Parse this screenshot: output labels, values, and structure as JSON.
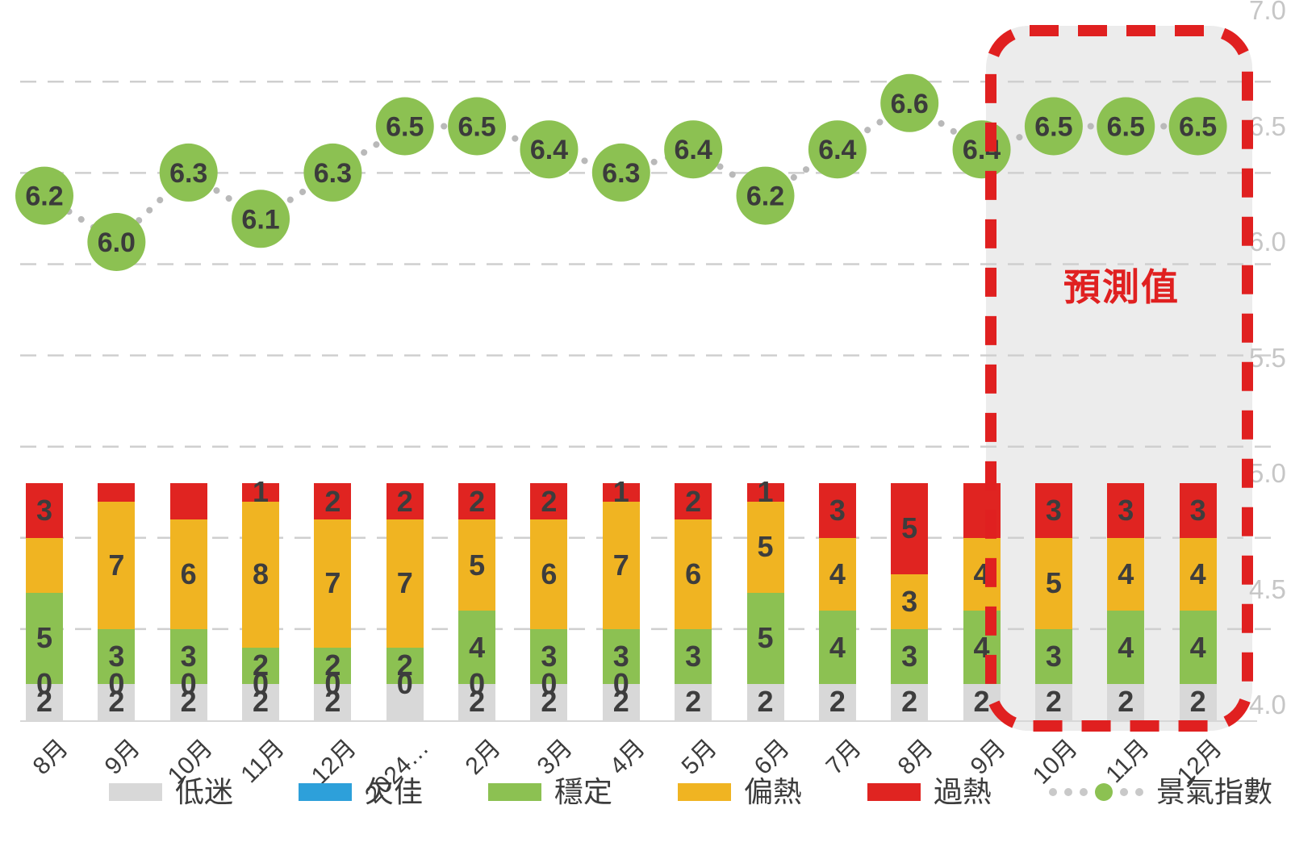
{
  "chart_data": {
    "type": "combo",
    "categories": [
      "8月",
      "9月",
      "10月",
      "11月",
      "12月",
      "2024…",
      "2月",
      "3月",
      "4月",
      "5月",
      "6月",
      "7月",
      "8月",
      "9月",
      "10月",
      "11月",
      "12月"
    ],
    "line_series": {
      "name": "景氣指數",
      "values": [
        6.2,
        6.0,
        6.3,
        6.1,
        6.3,
        6.5,
        6.5,
        6.4,
        6.3,
        6.4,
        6.2,
        6.4,
        6.6,
        6.4,
        6.5,
        6.5,
        6.5
      ],
      "marker_color": "#8cc152",
      "connector_color": "#b9b9b9"
    },
    "bar_series": [
      {
        "name": "低迷",
        "color": "#d8d8d8",
        "values": [
          2,
          2,
          2,
          2,
          2,
          2,
          2,
          2,
          2,
          2,
          2,
          2,
          2,
          2,
          2,
          2,
          2
        ],
        "labels": [
          "2",
          "2",
          "2",
          "2",
          "2",
          "",
          "2",
          "2",
          "2",
          "2",
          "2",
          "2",
          "2",
          "2",
          "2",
          "2",
          "2"
        ]
      },
      {
        "name": "欠佳",
        "color": "#2da0da",
        "values": [
          0,
          0,
          0,
          0,
          0,
          0,
          0,
          0,
          0,
          0,
          0,
          0,
          0,
          0,
          0,
          0,
          0
        ],
        "labels": [
          "0",
          "0",
          "0",
          "0",
          "0",
          "0",
          "0",
          "0",
          "0",
          "",
          "",
          "",
          "",
          "",
          "",
          "",
          ""
        ]
      },
      {
        "name": "穩定",
        "color": "#8cc152",
        "values": [
          5,
          3,
          3,
          2,
          2,
          2,
          4,
          3,
          3,
          3,
          5,
          4,
          3,
          4,
          3,
          4,
          4
        ],
        "labels": [
          "5",
          "3",
          "3",
          "2",
          "2",
          "2",
          "4",
          "3",
          "3",
          "3",
          "5",
          "4",
          "3",
          "4",
          "3",
          "4",
          "4"
        ]
      },
      {
        "name": "偏熱",
        "color": "#f0b422",
        "values": [
          3,
          7,
          6,
          8,
          7,
          7,
          5,
          6,
          7,
          6,
          5,
          4,
          3,
          4,
          5,
          4,
          4
        ],
        "labels": [
          "",
          "7",
          "6",
          "8",
          "7",
          "7",
          "5",
          "6",
          "7",
          "6",
          "5",
          "4",
          "3",
          "4",
          "5",
          "4",
          "4"
        ]
      },
      {
        "name": "過熱",
        "color": "#e02421",
        "values": [
          3,
          1,
          2,
          1,
          2,
          2,
          2,
          2,
          1,
          2,
          1,
          3,
          5,
          3,
          3,
          3,
          3
        ],
        "labels": [
          "3",
          "",
          "",
          "1",
          "2",
          "2",
          "2",
          "2",
          "1",
          "2",
          "1",
          "3",
          "5",
          "",
          "3",
          "3",
          "3"
        ]
      }
    ],
    "bar_total": 13,
    "right_axis": {
      "labels": [
        "7.0",
        "6.5",
        "6.0",
        "5.5",
        "5.0",
        "4.5",
        "4.0"
      ],
      "min": 4.0,
      "max": 7.0,
      "step": 0.5
    },
    "grid": "dashed-horizontal",
    "forecast": {
      "label": "預測值",
      "months": [
        "10月",
        "11月",
        "12月"
      ],
      "border_color": "#e02020",
      "fill_color": "#ececec"
    },
    "legend": [
      {
        "label": "低迷",
        "marker": "swatch",
        "color": "#d8d8d8"
      },
      {
        "label": "欠佳",
        "marker": "swatch",
        "color": "#2da0da"
      },
      {
        "label": "穩定",
        "marker": "swatch",
        "color": "#8cc152"
      },
      {
        "label": "偏熱",
        "marker": "swatch",
        "color": "#f0b422"
      },
      {
        "label": "過熱",
        "marker": "swatch",
        "color": "#e02421"
      },
      {
        "label": "景氣指數",
        "marker": "dotted-line",
        "color": "#8cc152",
        "dot_color": "#c9c9c9"
      }
    ]
  }
}
